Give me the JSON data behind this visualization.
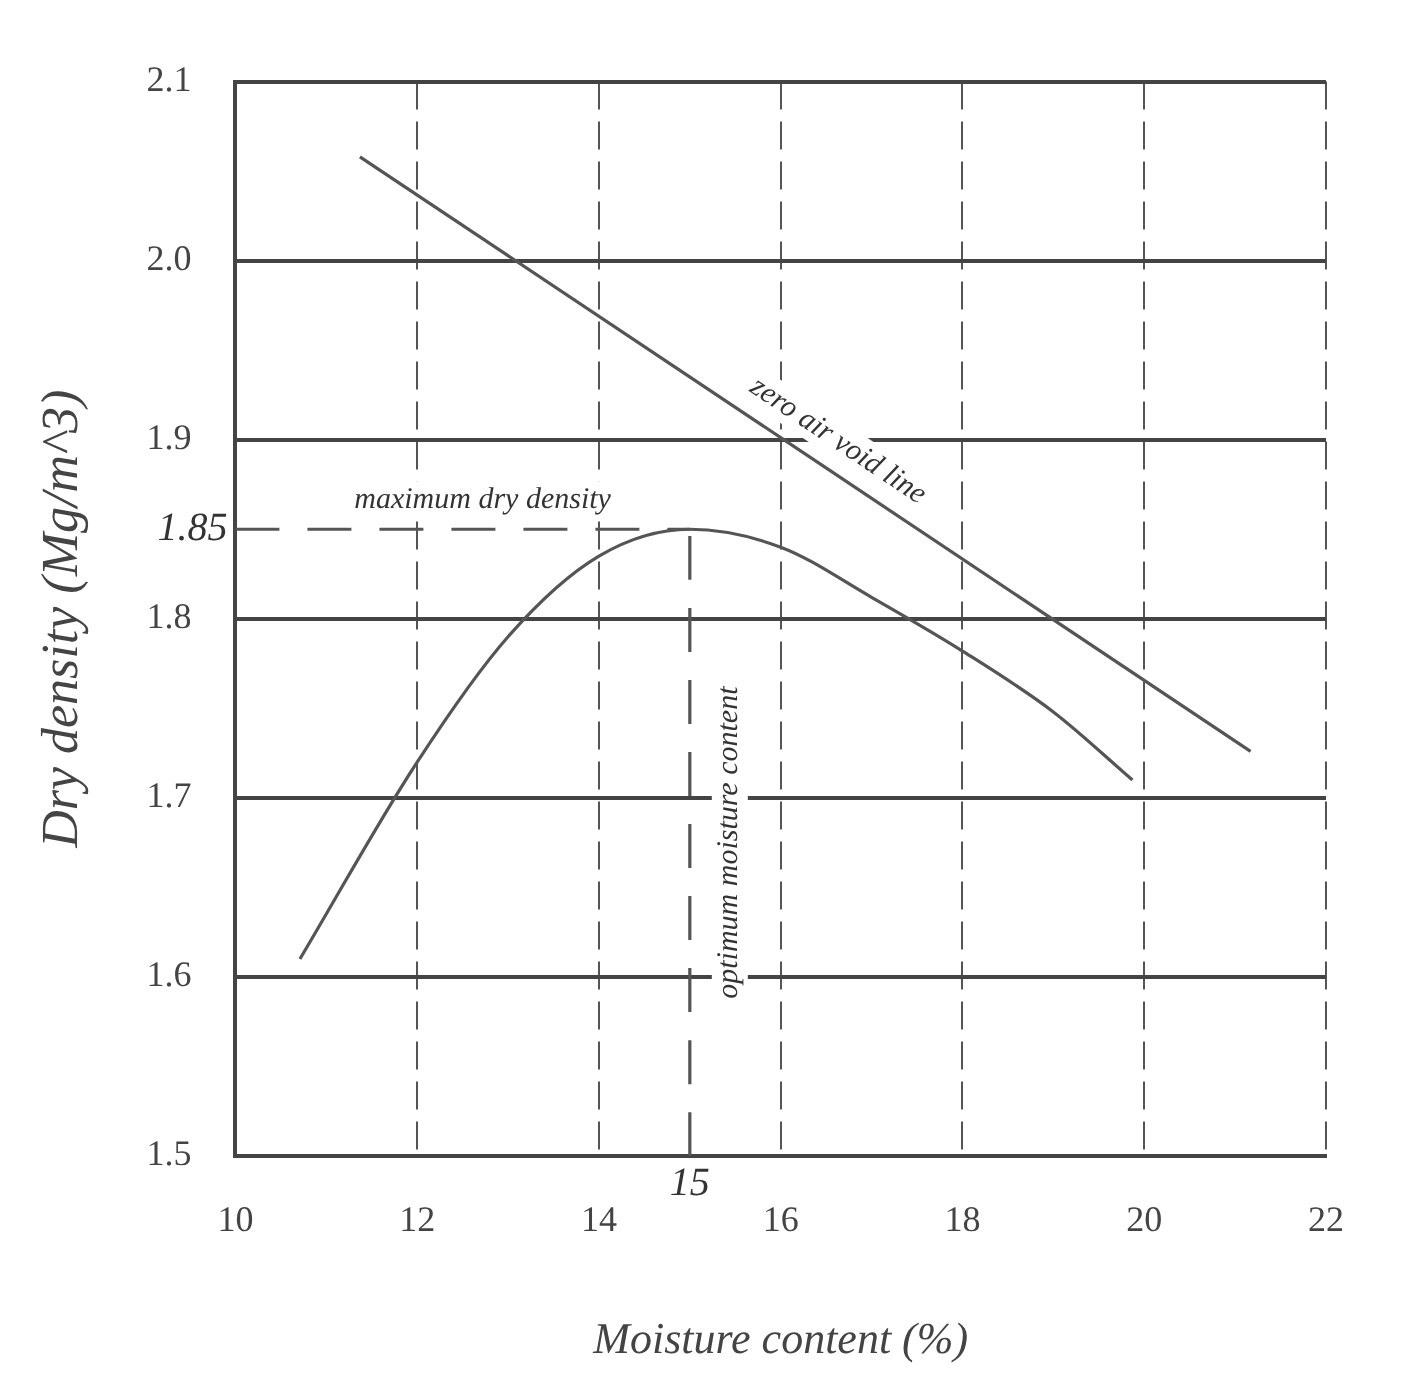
{
  "chart_data": {
    "type": "line",
    "xlabel": "Moisture content (%)",
    "ylabel": "Dry density (Mg/m^3)",
    "xlim": [
      10,
      22
    ],
    "xticks": [
      10,
      12,
      14,
      16,
      18,
      20,
      22
    ],
    "ylim": [
      1.5,
      2.1
    ],
    "yticks": [
      1.5,
      1.6,
      1.7,
      1.8,
      1.9,
      {
        "value": 2.0,
        "label": "2.0"
      },
      2.1
    ],
    "grid": true,
    "legend": false,
    "marker": "none",
    "series": [
      {
        "color": "#555555",
        "x": [
          10.71,
          12,
          13,
          14,
          15,
          16,
          17,
          18,
          19,
          19.87
        ],
        "values": [
          1.61,
          1.72,
          1.79,
          1.835,
          1.85,
          1.84,
          1.812,
          1.782,
          1.748,
          1.71
        ]
      },
      {
        "name": "zero air void line",
        "color": "#555555",
        "x": [
          11.37,
          21.17
        ],
        "values": [
          2.058,
          1.726
        ]
      },
      {
        "name": "maximum dry density",
        "color": "#555555",
        "line_style": "dashed",
        "x": [
          10,
          15
        ],
        "values": [
          1.85,
          1.85
        ]
      },
      {
        "name": "optimum moisture content",
        "color": "#555555",
        "line_style": "dashed",
        "x": [
          15,
          15
        ],
        "values": [
          1.5,
          1.85
        ]
      }
    ],
    "annotations": [
      {
        "text": "1.85",
        "x": 10,
        "y": 1.85
      },
      {
        "text": "15",
        "x": 15,
        "y": 1.5
      }
    ]
  }
}
